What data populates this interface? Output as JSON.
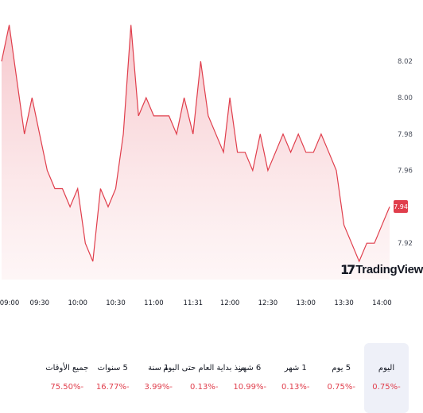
{
  "chart_data": {
    "type": "area",
    "x": [
      "09:00",
      "09:06",
      "09:12",
      "09:18",
      "09:24",
      "09:30",
      "09:36",
      "09:42",
      "09:48",
      "09:54",
      "10:00",
      "10:06",
      "10:12",
      "10:18",
      "10:24",
      "10:30",
      "10:36",
      "10:42",
      "10:48",
      "10:54",
      "11:00",
      "11:06",
      "11:12",
      "11:18",
      "11:24",
      "11:31",
      "11:37",
      "11:43",
      "11:49",
      "11:55",
      "12:00",
      "12:06",
      "12:12",
      "12:18",
      "12:24",
      "12:30",
      "12:36",
      "12:42",
      "12:48",
      "12:54",
      "13:00",
      "13:06",
      "13:12",
      "13:18",
      "13:24",
      "13:30",
      "13:36",
      "13:42",
      "13:48",
      "13:54",
      "14:00",
      "14:06"
    ],
    "values": [
      8.02,
      8.04,
      8.01,
      7.98,
      8.0,
      7.98,
      7.96,
      7.95,
      7.95,
      7.94,
      7.95,
      7.92,
      7.91,
      7.95,
      7.94,
      7.95,
      7.98,
      8.04,
      7.99,
      8.0,
      7.99,
      7.99,
      7.99,
      7.98,
      8.0,
      7.98,
      8.02,
      7.99,
      7.98,
      7.97,
      8.0,
      7.97,
      7.97,
      7.96,
      7.98,
      7.96,
      7.97,
      7.98,
      7.97,
      7.98,
      7.97,
      7.97,
      7.98,
      7.97,
      7.96,
      7.93,
      7.92,
      7.91,
      7.92,
      7.92,
      7.93,
      7.94
    ],
    "x_ticks": [
      "09:00",
      "09:30",
      "10:00",
      "10:30",
      "11:00",
      "11:31",
      "12:00",
      "12:30",
      "13:00",
      "13:30",
      "14:00"
    ],
    "y_ticks": [
      "8.02",
      "8.00",
      "7.98",
      "7.96",
      "7.92"
    ],
    "ylim": [
      7.9,
      8.045
    ],
    "last_price": "7.94",
    "color": "#e03e4c",
    "fill_color": "#f8d4d7"
  },
  "branding": {
    "logo_text": "TradingView",
    "logo_mark": "17"
  },
  "periods": [
    {
      "label": "اليوم",
      "change": "0.75%-",
      "active": true
    },
    {
      "label": "5 يوم",
      "change": "0.75%-",
      "active": false
    },
    {
      "label": "1 شهر",
      "change": "0.13%-",
      "active": false
    },
    {
      "label": "6 شهر",
      "change": "10.99%-",
      "active": false
    },
    {
      "label": "منذ بداية العام حتى اليوم",
      "change": "0.13%-",
      "active": false
    },
    {
      "label": "1 سنة",
      "change": "3.99%-",
      "active": false
    },
    {
      "label": "5 سنوات",
      "change": "16.77%-",
      "active": false
    },
    {
      "label": "جميع الأوقات",
      "change": "75.50%-",
      "active": false
    }
  ],
  "colors": {
    "negative": "#e03e4c",
    "text": "#131722",
    "active_bg": "#eef0f8"
  }
}
